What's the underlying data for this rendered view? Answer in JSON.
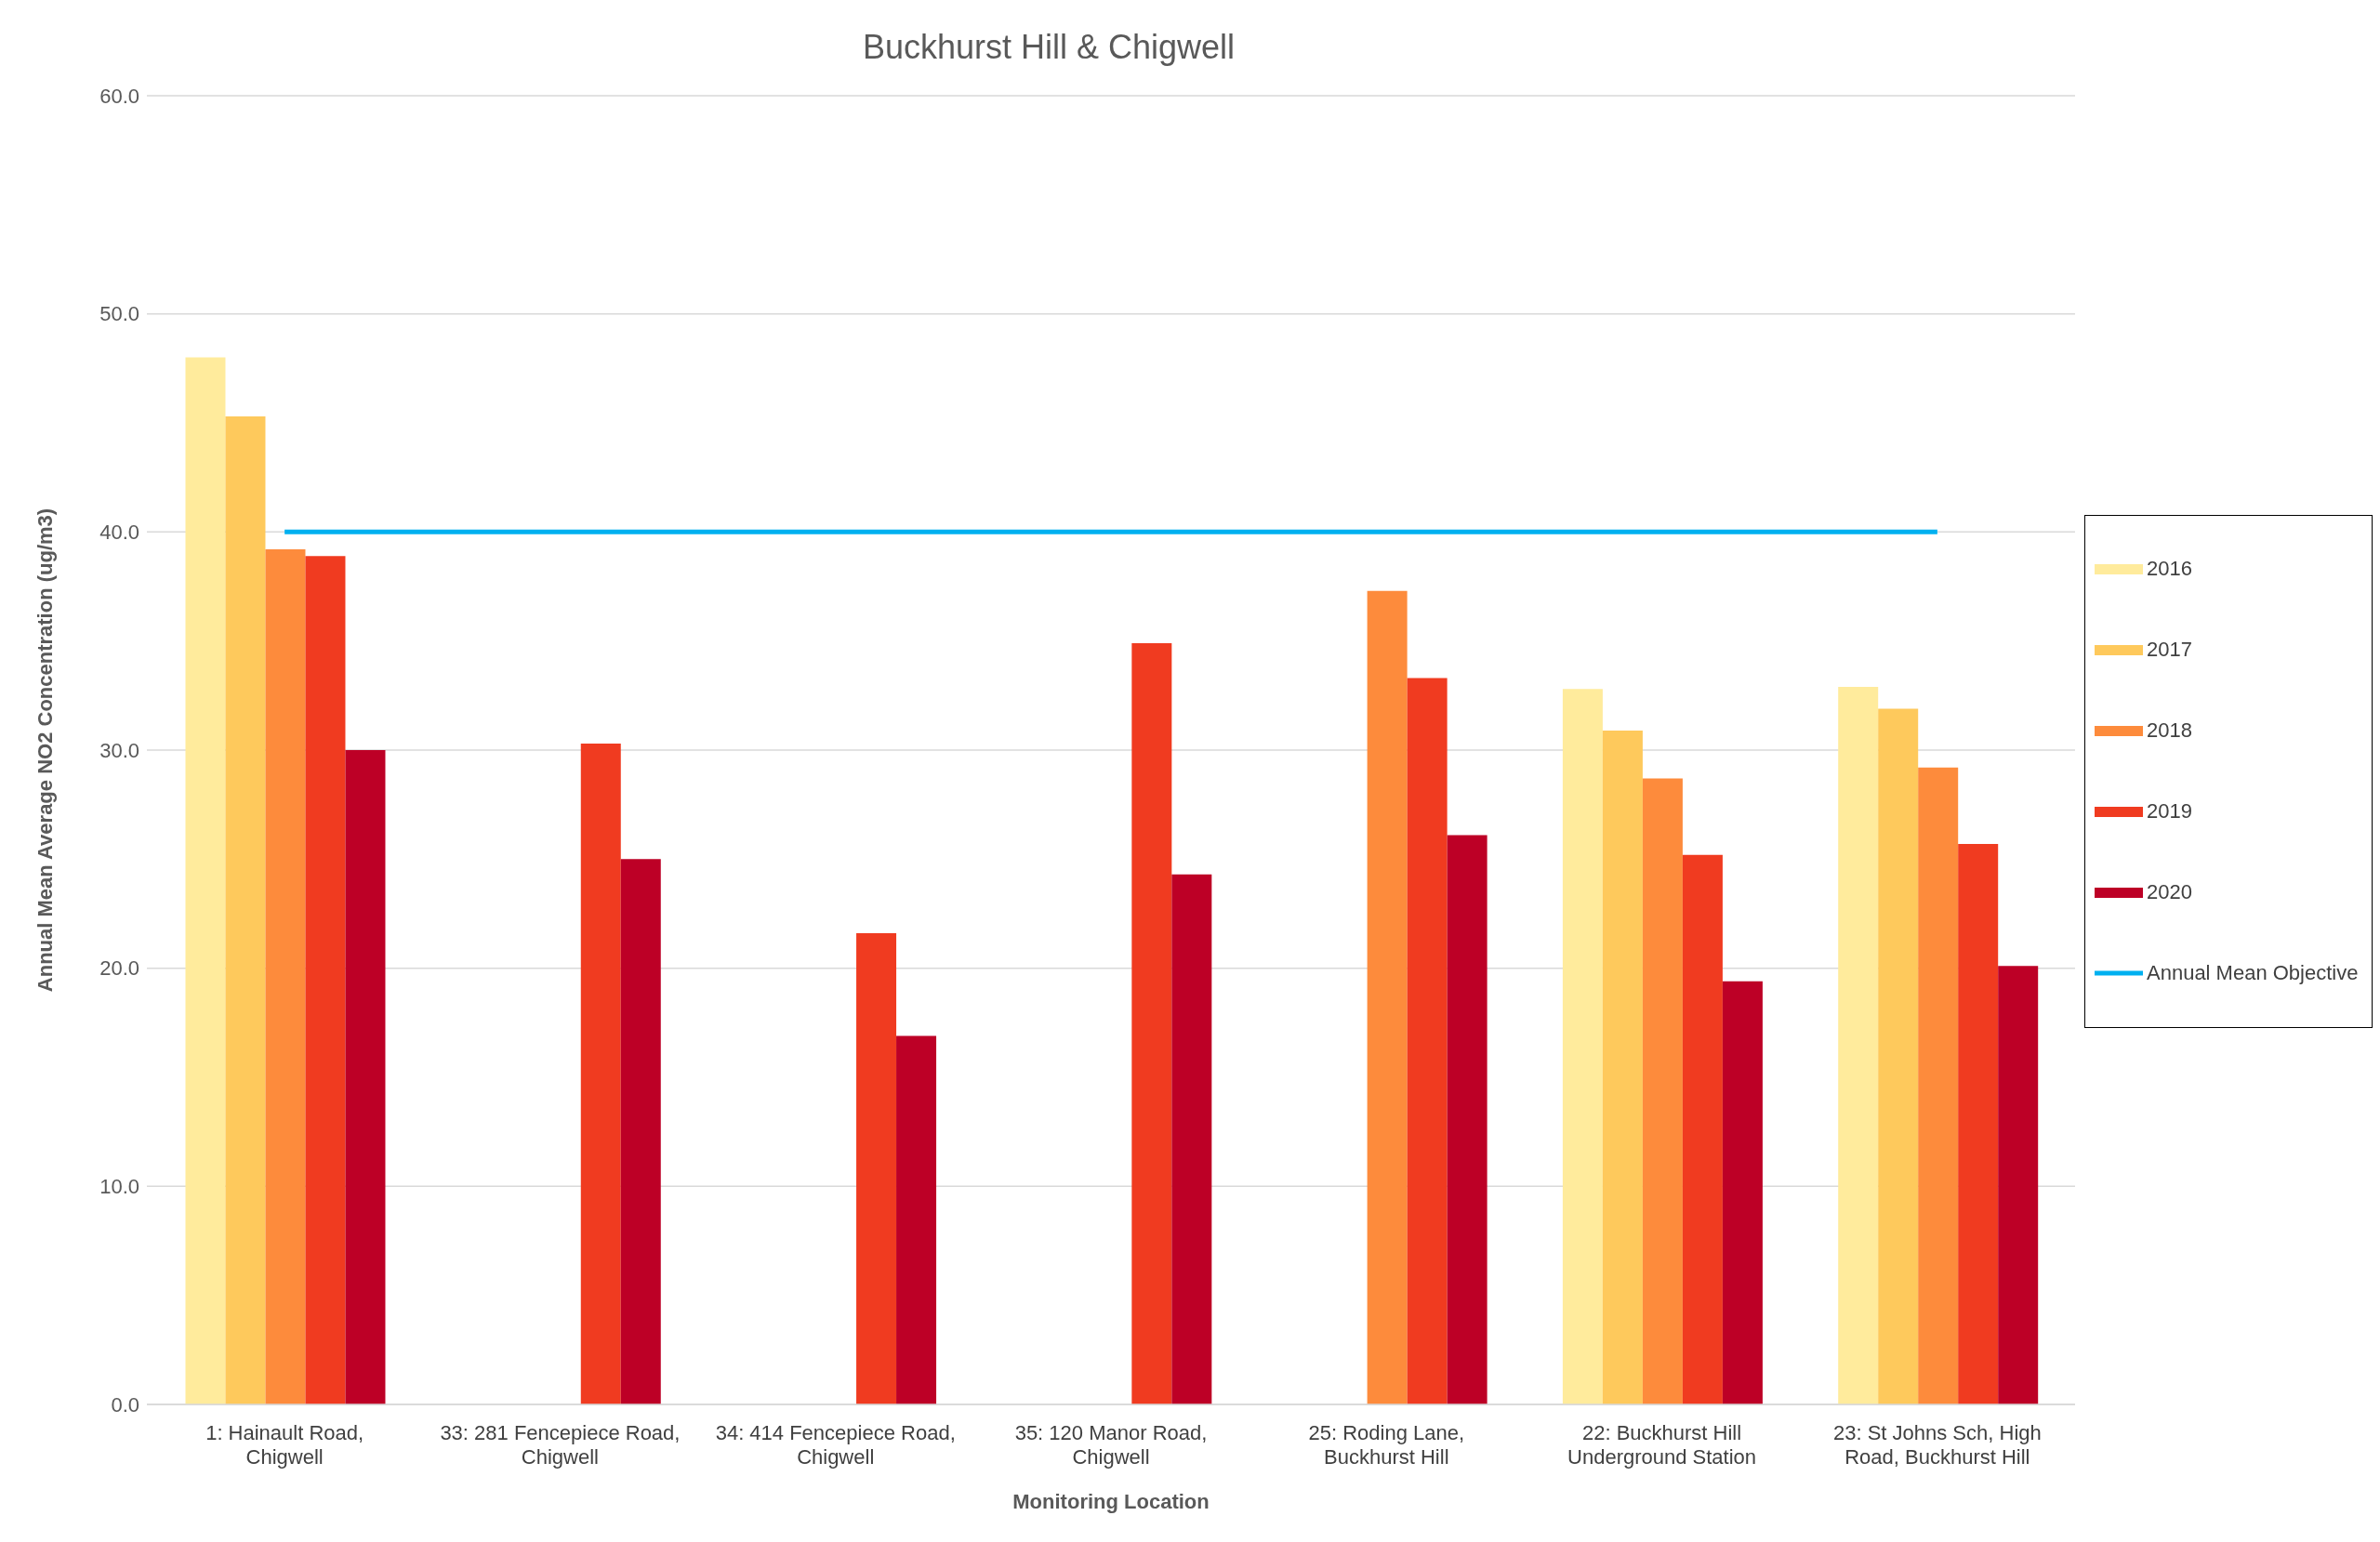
{
  "chart_data": {
    "type": "bar",
    "title": "Buckhurst Hill & Chigwell",
    "xlabel": "Monitoring Location",
    "ylabel": "Annual Mean Average NO2 Concentration (ug/m3)",
    "categories": [
      "1: Hainault Road, Chigwell",
      "33: 281 Fencepiece Road, Chigwell",
      "34: 414 Fencepiece Road, Chigwell",
      "35: 120 Manor Road, Chigwell",
      "25: Roding Lane, Buckhurst Hill",
      "22: Buckhurst Hill Underground Station",
      "23: St Johns Sch, High Road,  Buckhurst Hill"
    ],
    "series": [
      {
        "name": "2016",
        "color": "#ffeb9c",
        "values": [
          48.0,
          null,
          null,
          null,
          null,
          32.8,
          32.9
        ]
      },
      {
        "name": "2017",
        "color": "#fec95c",
        "values": [
          45.3,
          null,
          null,
          null,
          null,
          30.9,
          31.9
        ]
      },
      {
        "name": "2018",
        "color": "#fd8b3c",
        "values": [
          39.2,
          null,
          null,
          null,
          37.3,
          28.7,
          29.2
        ]
      },
      {
        "name": "2019",
        "color": "#f03b20",
        "values": [
          38.9,
          30.3,
          21.6,
          34.9,
          33.3,
          25.2,
          25.7
        ]
      },
      {
        "name": "2020",
        "color": "#bd0026",
        "values": [
          30.0,
          25.0,
          16.9,
          24.3,
          26.1,
          19.4,
          20.1
        ]
      },
      {
        "name": "Annual Mean Objective",
        "type": "line",
        "color": "#00b0f0",
        "values": [
          40,
          40,
          40,
          40,
          40,
          40,
          40
        ]
      }
    ],
    "ylim": [
      0,
      60
    ],
    "yticks": [
      {
        "value": 0,
        "label": "0.0"
      },
      {
        "value": 10,
        "label": "10.0"
      },
      {
        "value": 20,
        "label": "20.0"
      },
      {
        "value": 30,
        "label": "30.0"
      },
      {
        "value": 40,
        "label": "40.0"
      },
      {
        "value": 50,
        "label": "50.0"
      },
      {
        "value": 60,
        "label": "60.0"
      }
    ],
    "grid": "y",
    "legend": "right",
    "marker": "none"
  }
}
